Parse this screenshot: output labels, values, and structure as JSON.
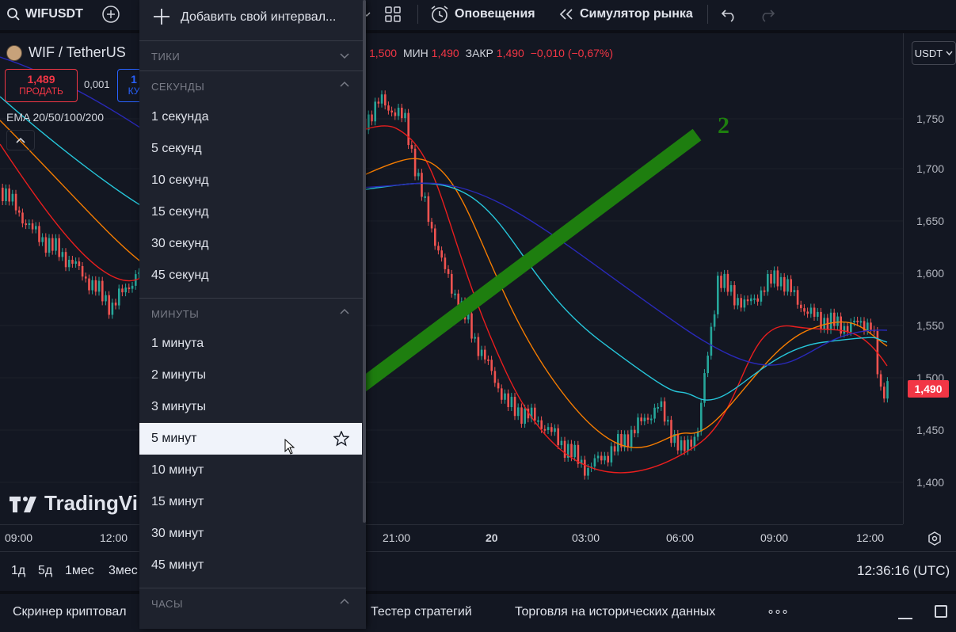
{
  "toolbar": {
    "symbol": "WIFUSDT",
    "alerts_label": "Оповещения",
    "simulator_label": "Симулятор рынка"
  },
  "legend": {
    "title": "WIF / TetherUS",
    "ohlc": {
      "high_value": "1,500",
      "low_label": "МИН",
      "low_value": "1,490",
      "close_label": "ЗАКР",
      "close_value": "1,490",
      "change": "−0,010 (−0,67%)"
    },
    "sell_price": "1,489",
    "sell_label": "ПРОДАТЬ",
    "spread": "0,001",
    "buy_price": "1",
    "buy_label": "КУ",
    "indicator": "EMA 20/50/100/200"
  },
  "currency_button": "USDT",
  "price_axis": {
    "labels": [
      "1,750",
      "1,700",
      "1,650",
      "1,600",
      "1,550",
      "1,500",
      "1,450",
      "1,400"
    ],
    "current_price": "1,490",
    "current_color": "#f23645"
  },
  "time_axis": {
    "labels": [
      "09:00",
      "12:00",
      "21:00",
      "20",
      "03:00",
      "06:00",
      "09:00",
      "12:00"
    ]
  },
  "range_bar": {
    "ranges": [
      "1д",
      "5д",
      "1мес",
      "3мес"
    ],
    "clock": "12:36:16 (UTC)"
  },
  "bottom_bar": {
    "tabs": [
      "Скринер криптовал",
      "Тестер стратегий",
      "Торговля на исторических данных"
    ],
    "more": "∘∘∘"
  },
  "watermark": "TradingVi",
  "annotation": {
    "number": "2",
    "color": "#1e7e0f"
  },
  "dropdown": {
    "add_label": "Добавить свой интервал...",
    "sections": {
      "ticks": "ТИКИ",
      "seconds": "СЕКУНДЫ",
      "minutes": "МИНУТЫ",
      "hours": "ЧАСЫ"
    },
    "seconds_items": [
      "1 секунда",
      "5 секунд",
      "10 секунд",
      "15 секунд",
      "30 секунд",
      "45 секунд"
    ],
    "minutes_items": [
      "1 минута",
      "2 минуты",
      "3 минуты",
      "5 минут",
      "10 минут",
      "15 минут",
      "30 минут",
      "45 минут"
    ],
    "selected": "5 минут"
  },
  "colors": {
    "background": "#131722",
    "up": "#26a69a",
    "down": "#ef5350",
    "ema20": "#e91e1e",
    "ema50": "#f57c00",
    "ema100": "#26c6da",
    "ema200": "#2929b8"
  }
}
